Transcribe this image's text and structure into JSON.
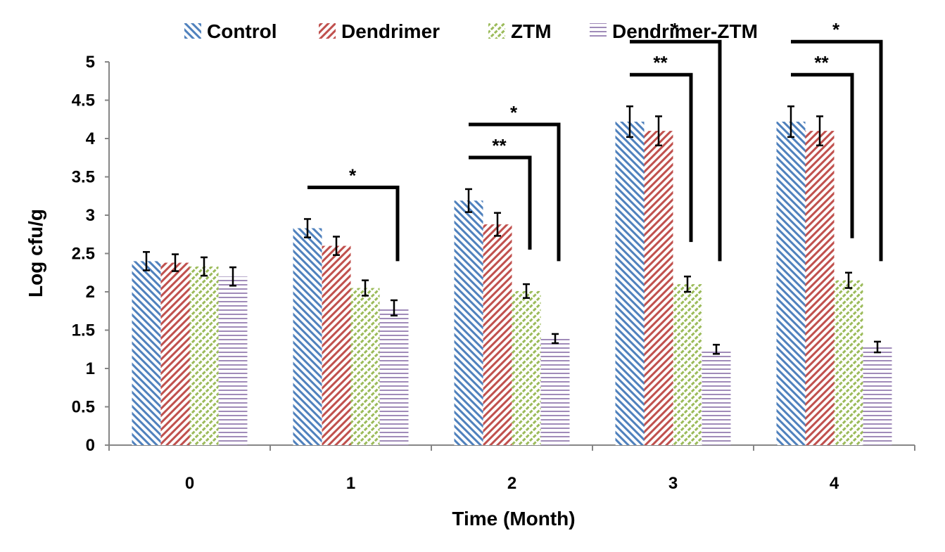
{
  "chart_data": {
    "type": "bar",
    "title": "",
    "xlabel": "Time (Month)",
    "ylabel": "Log cfu/g",
    "ylim": [
      0,
      5
    ],
    "yticks": [
      "0",
      "0.5",
      "1",
      "1.5",
      "2",
      "2.5",
      "3",
      "3.5",
      "4",
      "4.5",
      "5"
    ],
    "categories": [
      "0",
      "1",
      "2",
      "3",
      "4"
    ],
    "legend_position": "top",
    "grid": false,
    "series": [
      {
        "name": "Control",
        "color": "#4f81bd",
        "pattern": "diagonal-down",
        "values": [
          2.4,
          2.83,
          3.19,
          4.22,
          4.22
        ],
        "errors": [
          0.12,
          0.12,
          0.15,
          0.2,
          0.2
        ]
      },
      {
        "name": "Dendrimer",
        "color": "#c0504d",
        "pattern": "diagonal-up",
        "values": [
          2.38,
          2.6,
          2.88,
          4.1,
          4.1
        ],
        "errors": [
          0.11,
          0.12,
          0.15,
          0.19,
          0.19
        ]
      },
      {
        "name": "ZTM",
        "color": "#9bbb59",
        "pattern": "diagonal-up-dashed",
        "values": [
          2.33,
          2.05,
          2.01,
          2.1,
          2.15
        ],
        "errors": [
          0.12,
          0.1,
          0.09,
          0.1,
          0.1
        ]
      },
      {
        "name": "Dendrimer-ZTM",
        "color": "#8064a2",
        "pattern": "horizontal",
        "values": [
          2.2,
          1.79,
          1.39,
          1.25,
          1.28
        ],
        "errors": [
          0.12,
          0.1,
          0.06,
          0.06,
          0.07
        ]
      }
    ],
    "annotations": [
      {
        "category": 1,
        "from_series": 0,
        "to_series": 3,
        "label": "*"
      },
      {
        "category": 2,
        "from_series": 0,
        "to_series": 2,
        "label": "**"
      },
      {
        "category": 2,
        "from_series": 0,
        "to_series": 3,
        "label": "*"
      },
      {
        "category": 3,
        "from_series": 0,
        "to_series": 2,
        "label": "**"
      },
      {
        "category": 3,
        "from_series": 0,
        "to_series": 3,
        "label": "*"
      },
      {
        "category": 4,
        "from_series": 0,
        "to_series": 2,
        "label": "**"
      },
      {
        "category": 4,
        "from_series": 0,
        "to_series": 3,
        "label": "*"
      }
    ]
  }
}
